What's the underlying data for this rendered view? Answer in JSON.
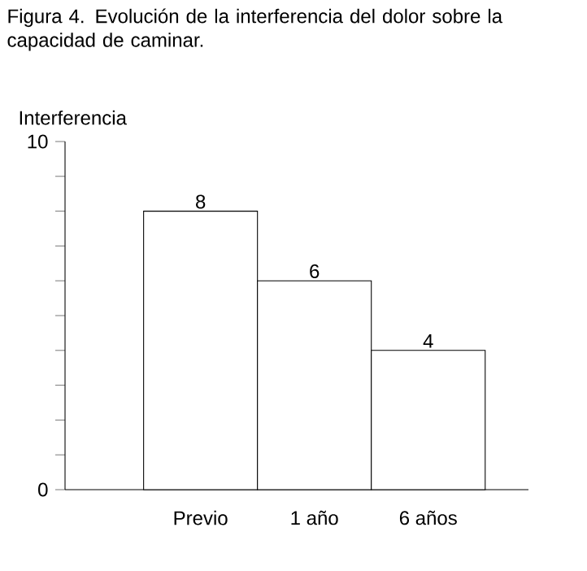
{
  "chart_data": {
    "type": "bar",
    "title": "Figura 4. Evolución de la interferencia del dolor sobre la capacidad de caminar.",
    "ylabel": "Interferencia",
    "categories": [
      "Previo",
      "1 año",
      "6 años"
    ],
    "values": [
      8,
      6,
      4
    ],
    "color": "#ffffff",
    "data_labels": true,
    "ylim": [
      0,
      10
    ],
    "yticks": [
      0,
      {
        "value": 1,
        "label": null
      },
      {
        "value": 2,
        "label": null
      },
      {
        "value": 3,
        "label": null
      },
      {
        "value": 4,
        "label": null
      },
      {
        "value": 5,
        "label": null
      },
      {
        "value": 6,
        "label": null
      },
      {
        "value": 7,
        "label": null
      },
      {
        "value": 8,
        "label": null
      },
      {
        "value": 9,
        "label": null
      },
      10
    ]
  }
}
